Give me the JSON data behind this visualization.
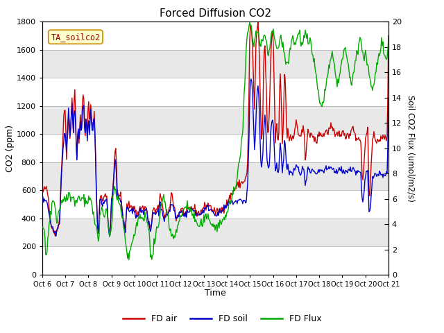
{
  "title": "Forced Diffusion CO2",
  "xlabel": "Time",
  "ylabel_left": "CO2 (ppm)",
  "ylabel_right": "Soil CO2 Flux (umol/m2/s)",
  "legend_label": "TA_soilco2",
  "x_tick_labels": [
    "Oct 6",
    "Oct 7",
    "Oct 8",
    "Oct 9",
    "Oct 10",
    "Oct 11",
    "Oct 12",
    "Oct 13",
    "Oct 14",
    "Oct 15",
    "Oct 16",
    "Oct 17",
    "Oct 18",
    "Oct 19",
    "Oct 20",
    "Oct 21"
  ],
  "ylim_left": [
    0,
    1800
  ],
  "ylim_right": [
    0,
    20
  ],
  "yticks_left": [
    0,
    200,
    400,
    600,
    800,
    1000,
    1200,
    1400,
    1600,
    1800
  ],
  "yticks_right": [
    0,
    2,
    4,
    6,
    8,
    10,
    12,
    14,
    16,
    18,
    20
  ],
  "color_air": "#cc0000",
  "color_soil": "#0000cc",
  "color_flux": "#00aa00",
  "legend_labels": [
    "FD air",
    "FD soil",
    "FD Flux"
  ],
  "annotation_box_color": "#ffffcc",
  "annotation_box_edge": "#cc8800",
  "bg_gray": "#e8e8e8"
}
